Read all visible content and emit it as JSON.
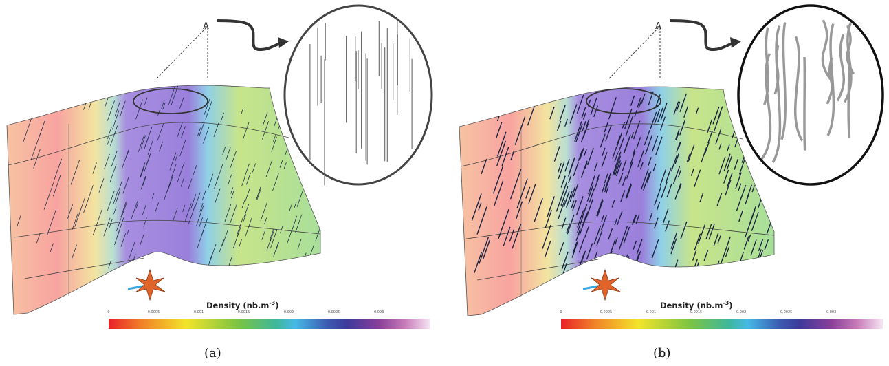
{
  "panels": [
    {
      "caption": "(a)",
      "legend_title": "Density (nb.m",
      "legend_title_exp": "-3",
      "tick_labels": [
        "0",
        "0.0005",
        "0.001",
        "0.0015",
        "0.002",
        "0.0025",
        "0.003"
      ]
    },
    {
      "caption": "(b)",
      "legend_title": "Density (nb.m",
      "legend_title_exp": "-3",
      "tick_labels": [
        "0",
        "0.0005",
        "0.001",
        "0.0015",
        "0.002",
        "0.0025",
        "0.003"
      ]
    }
  ],
  "compass_label": "A",
  "colors": {
    "low": "#e8202a",
    "mid": "#7cc442",
    "high": "#8a3f9a"
  }
}
